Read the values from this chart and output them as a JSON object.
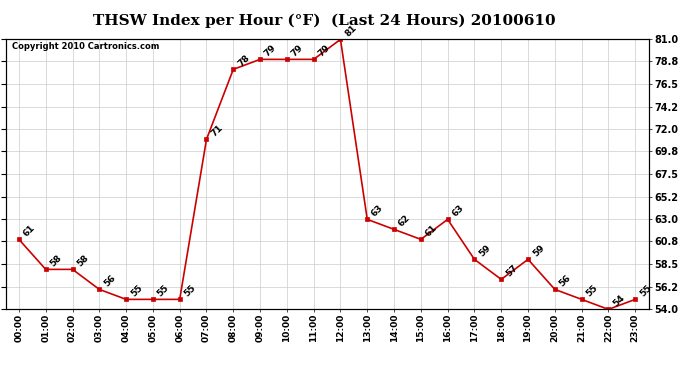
{
  "title": "THSW Index per Hour (°F)  (Last 24 Hours) 20100610",
  "copyright": "Copyright 2010 Cartronics.com",
  "hours": [
    "00:00",
    "01:00",
    "02:00",
    "03:00",
    "04:00",
    "05:00",
    "06:00",
    "07:00",
    "08:00",
    "09:00",
    "10:00",
    "11:00",
    "12:00",
    "13:00",
    "14:00",
    "15:00",
    "16:00",
    "17:00",
    "18:00",
    "19:00",
    "20:00",
    "21:00",
    "22:00",
    "23:00"
  ],
  "values": [
    61,
    58,
    58,
    56,
    55,
    55,
    55,
    71,
    78,
    79,
    79,
    79,
    81,
    63,
    62,
    61,
    63,
    59,
    57,
    59,
    56,
    55,
    54,
    55
  ],
  "line_color": "#cc0000",
  "marker_color": "#cc0000",
  "background_color": "#ffffff",
  "grid_color": "#cccccc",
  "ylim_min": 54.0,
  "ylim_max": 81.0,
  "yticks": [
    54.0,
    56.2,
    58.5,
    60.8,
    63.0,
    65.2,
    67.5,
    69.8,
    72.0,
    74.2,
    76.5,
    78.8,
    81.0
  ],
  "title_fontsize": 11,
  "label_fontsize": 6.5,
  "tick_fontsize": 6.5,
  "copyright_fontsize": 6,
  "ytick_fontsize": 7,
  "border_color": "#000000"
}
